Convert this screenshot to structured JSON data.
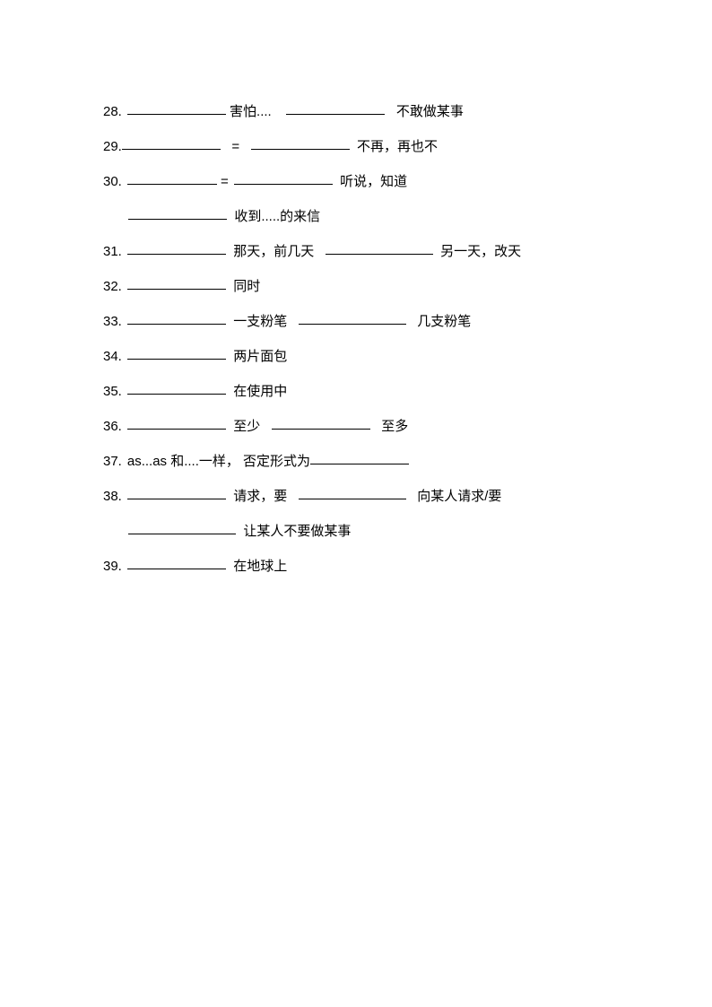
{
  "lines": {
    "l28": {
      "num": "28.",
      "t1": "害怕....",
      "t2": "不敢做某事"
    },
    "l29": {
      "num": "29.",
      "eq": "=",
      "t1": "不再，再也不"
    },
    "l30a": {
      "num": "30.",
      "eq": "=",
      "t1": "听说，知道"
    },
    "l30b": {
      "t1": "收到.....的来信"
    },
    "l31": {
      "num": "31.",
      "t1": "那天，前几天",
      "t2": "另一天，改天"
    },
    "l32": {
      "num": "32.",
      "t1": "同时"
    },
    "l33": {
      "num": "33.",
      "t1": "一支粉笔",
      "t2": "几支粉笔"
    },
    "l34": {
      "num": "34.",
      "t1": "两片面包"
    },
    "l35": {
      "num": "35.",
      "t1": "在使用中"
    },
    "l36": {
      "num": "36.",
      "t1": "至少",
      "t2": "至多"
    },
    "l37": {
      "num": "37.",
      "t0": "as...as   和....一样，  否定形式为"
    },
    "l38a": {
      "num": "38.",
      "t1": "请求，要",
      "t2": "向某人请求/要"
    },
    "l38b": {
      "t1": "让某人不要做某事"
    },
    "l39": {
      "num": "39.",
      "t1": "在地球上"
    }
  },
  "styles": {
    "text_color": "#000000",
    "background_color": "#ffffff",
    "fontsize": 15,
    "blank_border_color": "#000000"
  }
}
